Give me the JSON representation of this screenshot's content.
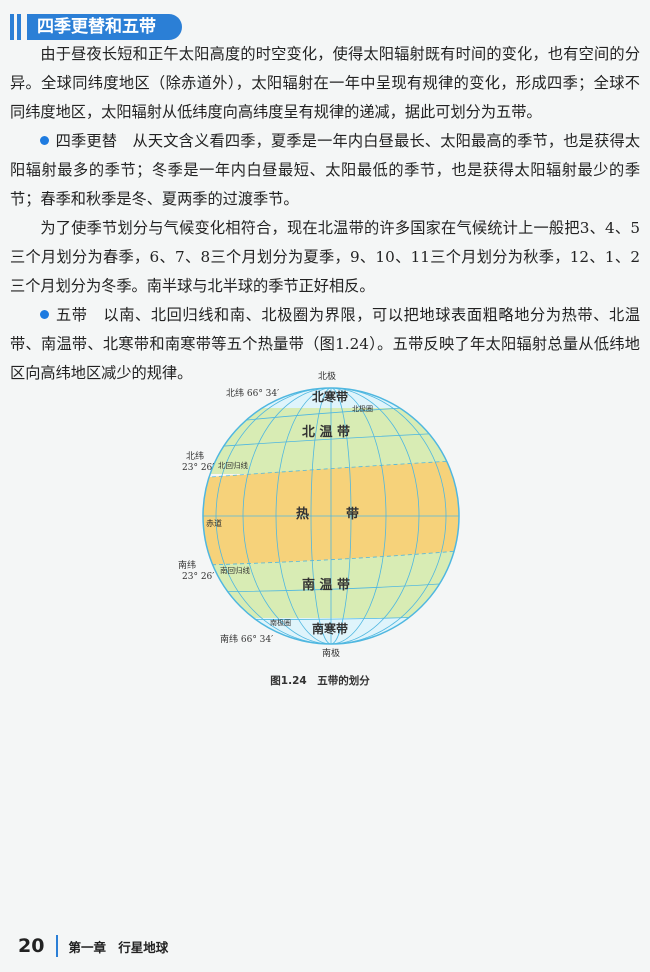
{
  "section_title": "四季更替和五带",
  "paragraphs": [
    "由于昼夜长短和正午太阳高度的时空变化，使得太阳辐射既有时间的变化，也有空间的分异。全球同纬度地区（除赤道外），太阳辐射在一年中呈现有规律的变化，形成四季；全球不同纬度地区，太阳辐射从低纬度向高纬度呈有规律的递减，据此可划分为五带。",
    "从天文含义看四季，夏季是一年内白昼最长、太阳最高的季节，也是获得太阳辐射最多的季节；冬季是一年内白昼最短、太阳最低的季节，也是获得太阳辐射最少的季节；春季和秋季是冬、夏两季的过渡季节。",
    "为了使季节划分与气候变化相符合，现在北温带的许多国家在气候统计上一般把3、4、5三个月划分为春季，6、7、8三个月划分为夏季，9、10、11三个月划分为秋季，12、1、2三个月划分为冬季。南半球与北半球的季节正好相反。",
    "以南、北回归线和南、北极圈为界限，可以把地球表面粗略地分为热带、北温带、南温带、北寒带和南寒带等五个热量带（图1.24）。五带反映了年太阳辐射总量从低纬地区向高纬地区减少的规律。"
  ],
  "bullet_terms": [
    "四季更替",
    "五带"
  ],
  "figure": {
    "caption": "图1.24　五带的划分",
    "labels": {
      "north_pole": "北极",
      "south_pole": "南极",
      "lat_n66": "北纬 66° 34′",
      "lat_n23_a": "北纬",
      "lat_n23_b": "23° 26′",
      "lat_s23_a": "南纬",
      "lat_s23_b": "23° 26′",
      "lat_s66": "南纬 66° 34′",
      "arctic_circle": "北极圈",
      "antarctic_circle": "南极圈",
      "tropic_cancer": "北回归线",
      "tropic_capricorn": "南回归线",
      "equator": "赤道",
      "north_frigid": "北寒带",
      "north_temperate": "北 温 带",
      "torrid_a": "热",
      "torrid_b": "带",
      "south_temperate": "南 温 带",
      "south_frigid": "南寒带"
    },
    "colors": {
      "frigid": "#dff4fb",
      "temperate": "#d8ecb4",
      "torrid": "#f6d27a",
      "grid": "#4fb7e0"
    }
  },
  "footer": {
    "page_number": "20",
    "chapter": "第一章 行星地球"
  }
}
